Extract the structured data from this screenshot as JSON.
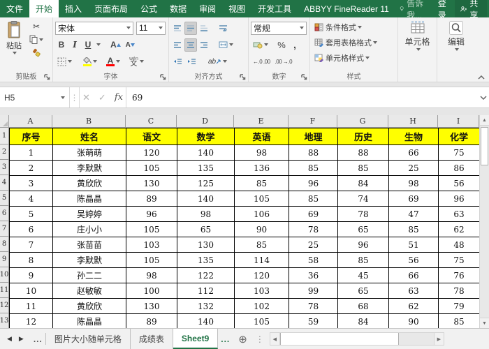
{
  "colors": {
    "accent_green": "#217346",
    "header_yellow": "#ffff00",
    "font_color_red": "#ff0000",
    "fill_color_yellow": "#ffff00"
  },
  "titlebar": {
    "tabs": [
      {
        "label": "文件",
        "active": false
      },
      {
        "label": "开始",
        "active": true
      },
      {
        "label": "插入",
        "active": false
      },
      {
        "label": "页面布局",
        "active": false
      },
      {
        "label": "公式",
        "active": false
      },
      {
        "label": "数据",
        "active": false
      },
      {
        "label": "审阅",
        "active": false
      },
      {
        "label": "视图",
        "active": false
      },
      {
        "label": "开发工具",
        "active": false
      },
      {
        "label": "ABBYY FineReader 11",
        "active": false
      }
    ],
    "tell_me": "告诉我...",
    "sign_in": "登录",
    "share": "共享"
  },
  "ribbon": {
    "clipboard": {
      "paste": "粘贴",
      "label": "剪贴板"
    },
    "font": {
      "font_name": "宋体",
      "font_size": "11",
      "bold": "B",
      "italic": "I",
      "underline": "U",
      "grow": "A",
      "shrink": "A",
      "font_color_letter": "A",
      "phonetic": "文",
      "phonetic_sup": "wén",
      "label": "字体"
    },
    "alignment": {
      "orientation": "ab",
      "label": "对齐方式"
    },
    "number": {
      "format": "常规",
      "percent": "%",
      "comma": ",",
      "inc_decimal": "←.0 .00",
      "dec_decimal": ".00 →.0",
      "label": "数字"
    },
    "styles": {
      "items": [
        "条件格式",
        "套用表格格式",
        "单元格样式"
      ],
      "label": "样式"
    },
    "cells": {
      "label": "单元格"
    },
    "editing": {
      "label": "编辑"
    }
  },
  "formula_bar": {
    "name_box": "H5",
    "cancel": "✕",
    "enter": "✓",
    "fx": "fx",
    "value": "69"
  },
  "grid": {
    "column_headers": [
      "A",
      "B",
      "C",
      "D",
      "E",
      "F",
      "G",
      "H",
      "I"
    ],
    "row_headers": [
      "1",
      "2",
      "3",
      "4",
      "5",
      "6",
      "7",
      "8",
      "9",
      "10",
      "11",
      "12",
      "13"
    ],
    "table_headers": [
      "序号",
      "姓名",
      "语文",
      "数学",
      "英语",
      "地理",
      "历史",
      "生物",
      "化学"
    ],
    "rows": [
      [
        "1",
        "张萌萌",
        "120",
        "140",
        "98",
        "88",
        "88",
        "66",
        "75"
      ],
      [
        "2",
        "李默默",
        "105",
        "135",
        "136",
        "85",
        "85",
        "25",
        "86"
      ],
      [
        "3",
        "黄欣欣",
        "130",
        "125",
        "85",
        "96",
        "84",
        "98",
        "56"
      ],
      [
        "4",
        "陈晶晶",
        "89",
        "140",
        "105",
        "85",
        "74",
        "69",
        "96"
      ],
      [
        "5",
        "吴婷婷",
        "96",
        "98",
        "106",
        "69",
        "78",
        "47",
        "63"
      ],
      [
        "6",
        "庄小小",
        "105",
        "65",
        "90",
        "78",
        "65",
        "85",
        "62"
      ],
      [
        "7",
        "张苗苗",
        "103",
        "130",
        "85",
        "25",
        "96",
        "51",
        "48"
      ],
      [
        "8",
        "李默默",
        "105",
        "135",
        "114",
        "58",
        "85",
        "56",
        "75"
      ],
      [
        "9",
        "孙二二",
        "98",
        "122",
        "120",
        "36",
        "45",
        "66",
        "76"
      ],
      [
        "10",
        "赵敏敏",
        "100",
        "112",
        "103",
        "99",
        "65",
        "63",
        "78"
      ],
      [
        "11",
        "黄欣欣",
        "130",
        "132",
        "102",
        "78",
        "68",
        "62",
        "79"
      ],
      [
        "12",
        "陈晶晶",
        "89",
        "140",
        "105",
        "59",
        "84",
        "90",
        "85"
      ]
    ]
  },
  "sheetbar": {
    "tabs": [
      {
        "label": "图片大小随单元格",
        "active": false
      },
      {
        "label": "成绩表",
        "active": false
      },
      {
        "label": "Sheet9",
        "active": true
      }
    ],
    "left_ellipsis": "...",
    "right_ellipsis": "...",
    "new_sheet": "⊕"
  }
}
